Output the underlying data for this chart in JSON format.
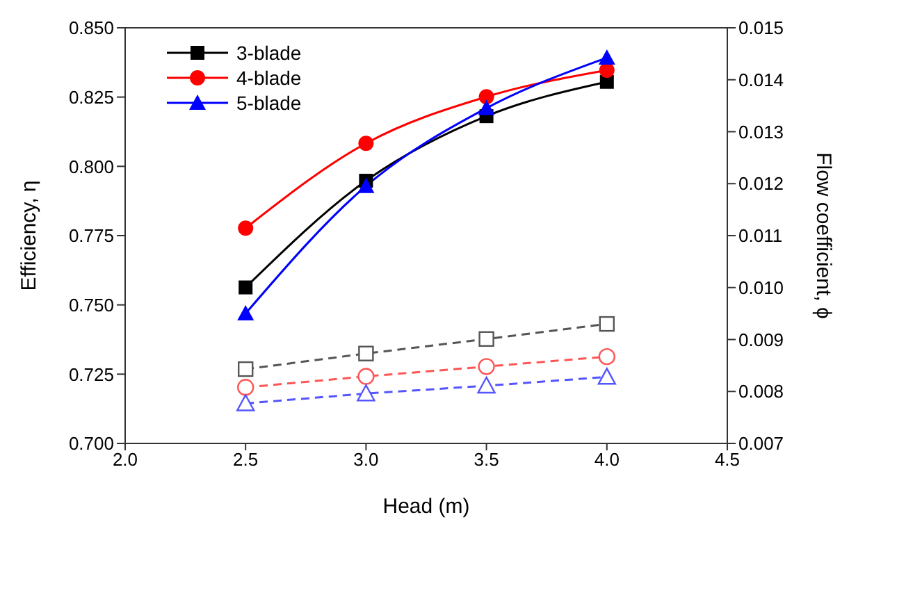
{
  "chart_data": {
    "type": "line",
    "xlabel": "Head (m)",
    "ylabel": "Efficiency, η",
    "y2label": "Flow coefficient, ϕ",
    "x": [
      2.5,
      3.0,
      3.5,
      4.0
    ],
    "series": [
      {
        "name": "3-blade",
        "color": "#000000",
        "marker": "square",
        "line_style": "solid",
        "values": [
          0.7563,
          0.7948,
          0.8181,
          0.8305
        ]
      },
      {
        "name": "4-blade",
        "color": "#ff0000",
        "marker": "circle",
        "line_style": "solid",
        "values": [
          0.7777,
          0.8083,
          0.8251,
          0.8347
        ]
      },
      {
        "name": "5-blade",
        "color": "#0000ff",
        "marker": "triangle",
        "line_style": "solid",
        "values": [
          0.7469,
          0.7929,
          0.821,
          0.8392
        ]
      },
      {
        "color": "#555555",
        "marker": "square",
        "line_style": "dashed",
        "axis": "y2",
        "values": [
          0.00843,
          0.00873,
          0.00901,
          0.0093
        ]
      },
      {
        "color": "#ff5555",
        "marker": "circle",
        "line_style": "dashed",
        "axis": "y2",
        "values": [
          0.00808,
          0.00829,
          0.00848,
          0.00867
        ]
      },
      {
        "color": "#5555ff",
        "marker": "triangle",
        "line_style": "dashed",
        "axis": "y2",
        "values": [
          0.00777,
          0.00796,
          0.00811,
          0.00828
        ]
      }
    ],
    "xlim": [
      2.0,
      4.5
    ],
    "xticks": [
      {
        "value": 2.0,
        "label": "2.0"
      },
      {
        "value": 2.5,
        "label": "2.5"
      },
      {
        "value": 3.0,
        "label": "3.0"
      },
      {
        "value": 3.5,
        "label": "3.5"
      },
      {
        "value": 4.0,
        "label": "4.0"
      },
      {
        "value": 4.5,
        "label": "4.5"
      }
    ],
    "ylim": [
      0.7,
      0.85
    ],
    "yticks": [
      {
        "value": 0.7,
        "label": "0.700"
      },
      {
        "value": 0.725,
        "label": "0.725"
      },
      {
        "value": 0.75,
        "label": "0.750"
      },
      {
        "value": 0.775,
        "label": "0.775"
      },
      {
        "value": 0.8,
        "label": "0.800"
      },
      {
        "value": 0.825,
        "label": "0.825"
      },
      {
        "value": 0.85,
        "label": "0.850"
      }
    ],
    "y2lim": [
      0.007,
      0.015
    ],
    "y2ticks": [
      {
        "value": 0.007,
        "label": "0.007"
      },
      {
        "value": 0.008,
        "label": "0.008"
      },
      {
        "value": 0.009,
        "label": "0.009"
      },
      {
        "value": 0.01,
        "label": "0.010"
      },
      {
        "value": 0.011,
        "label": "0.011"
      },
      {
        "value": 0.012,
        "label": "0.012"
      },
      {
        "value": 0.013,
        "label": "0.013"
      },
      {
        "value": 0.014,
        "label": "0.014"
      },
      {
        "value": 0.015,
        "label": "0.015"
      }
    ],
    "legend": "top left",
    "grid": false
  }
}
